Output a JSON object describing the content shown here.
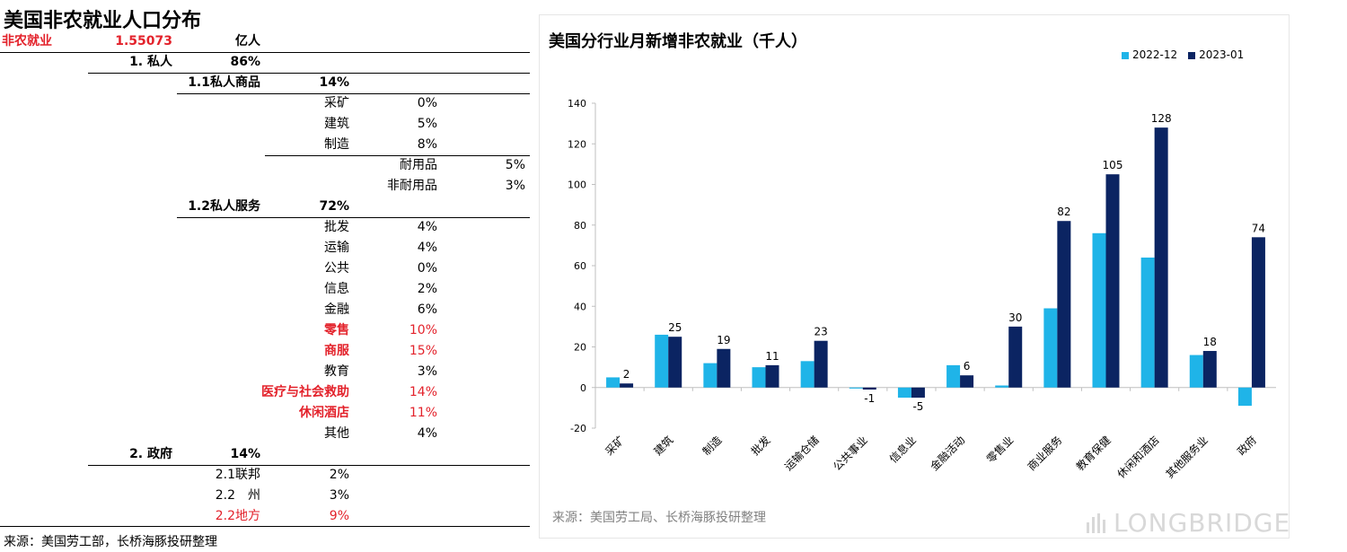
{
  "left_title": "美国非农就业人口分布",
  "table_rows": [
    {
      "label": "非农就业",
      "value": "1.55073",
      "unit": "亿人",
      "level": 0,
      "red": true,
      "bold": true
    },
    {
      "label": "1. 私人",
      "value": "86%",
      "level": 1,
      "red": false,
      "bold": true
    },
    {
      "label": "1.1私人商品",
      "value": "14%",
      "level": 2,
      "red": false,
      "bold": true
    },
    {
      "label": "采矿",
      "value": "0%",
      "level": 3,
      "red": false,
      "bold": false
    },
    {
      "label": "建筑",
      "value": "5%",
      "level": 3,
      "red": false,
      "bold": false
    },
    {
      "label": "制造",
      "value": "8%",
      "level": 3,
      "red": false,
      "bold": false
    },
    {
      "label": "耐用品",
      "value": "5%",
      "level": 4,
      "red": false,
      "bold": false
    },
    {
      "label": "非耐用品",
      "value": "3%",
      "level": 4,
      "red": false,
      "bold": false
    },
    {
      "label": "1.2私人服务",
      "value": "72%",
      "level": 2,
      "red": false,
      "bold": true
    },
    {
      "label": "批发",
      "value": "4%",
      "level": 3,
      "red": false,
      "bold": false
    },
    {
      "label": "运输",
      "value": "4%",
      "level": 3,
      "red": false,
      "bold": false
    },
    {
      "label": "公共",
      "value": "0%",
      "level": 3,
      "red": false,
      "bold": false
    },
    {
      "label": "信息",
      "value": "2%",
      "level": 3,
      "red": false,
      "bold": false
    },
    {
      "label": "金融",
      "value": "6%",
      "level": 3,
      "red": false,
      "bold": false
    },
    {
      "label": "零售",
      "value": "10%",
      "level": 3,
      "red": true,
      "bold": true
    },
    {
      "label": "商服",
      "value": "15%",
      "level": 3,
      "red": true,
      "bold": true
    },
    {
      "label": "教育",
      "value": "3%",
      "level": 3,
      "red": false,
      "bold": false
    },
    {
      "label": "医疗与社会救助",
      "value": "14%",
      "level": 3,
      "red": true,
      "bold": true
    },
    {
      "label": "休闲酒店",
      "value": "11%",
      "level": 3,
      "red": true,
      "bold": true
    },
    {
      "label": "其他",
      "value": "4%",
      "level": 3,
      "red": false,
      "bold": false
    },
    {
      "label": "2. 政府",
      "value": "14%",
      "level": 1,
      "red": false,
      "bold": true
    },
    {
      "label": "2.1联邦",
      "value": "2%",
      "level": 2,
      "red": false,
      "bold": false
    },
    {
      "label": "2.2　州",
      "value": "3%",
      "level": 2,
      "red": false,
      "bold": false
    },
    {
      "label": "2.2地方",
      "value": "9%",
      "level": 2,
      "red": true,
      "bold": false
    }
  ],
  "left_source": "来源：美国劳工部，长桥海豚投研整理",
  "right_source": "来源：美国劳工局、长桥海豚投研整理",
  "brand": "LONGBRIDGE",
  "chart_data": {
    "type": "bar",
    "title": "美国分行业月新增非农就业（千人）",
    "categories": [
      "采矿",
      "建筑",
      "制造",
      "批发",
      "运输仓储",
      "公共事业",
      "信息业",
      "金融活动",
      "零售业",
      "商业服务",
      "教育保健",
      "休闲和酒店",
      "其他服务业",
      "政府"
    ],
    "series": [
      {
        "name": "2022-12",
        "color": "#1fb4e8",
        "values": [
          5,
          26,
          12,
          10,
          13,
          -0.5,
          -5,
          11,
          1,
          39,
          76,
          64,
          16,
          -9
        ]
      },
      {
        "name": "2023-01",
        "color": "#0b2462",
        "values": [
          2,
          25,
          19,
          11,
          23,
          -1,
          -5,
          6,
          30,
          82,
          105,
          128,
          18,
          74
        ]
      }
    ],
    "data_labels_series": "2023-01",
    "ylim": [
      -20,
      140
    ],
    "yticks": [
      -20,
      0,
      20,
      40,
      60,
      80,
      100,
      120,
      140
    ],
    "legend_position": "top-right",
    "grid": false
  }
}
